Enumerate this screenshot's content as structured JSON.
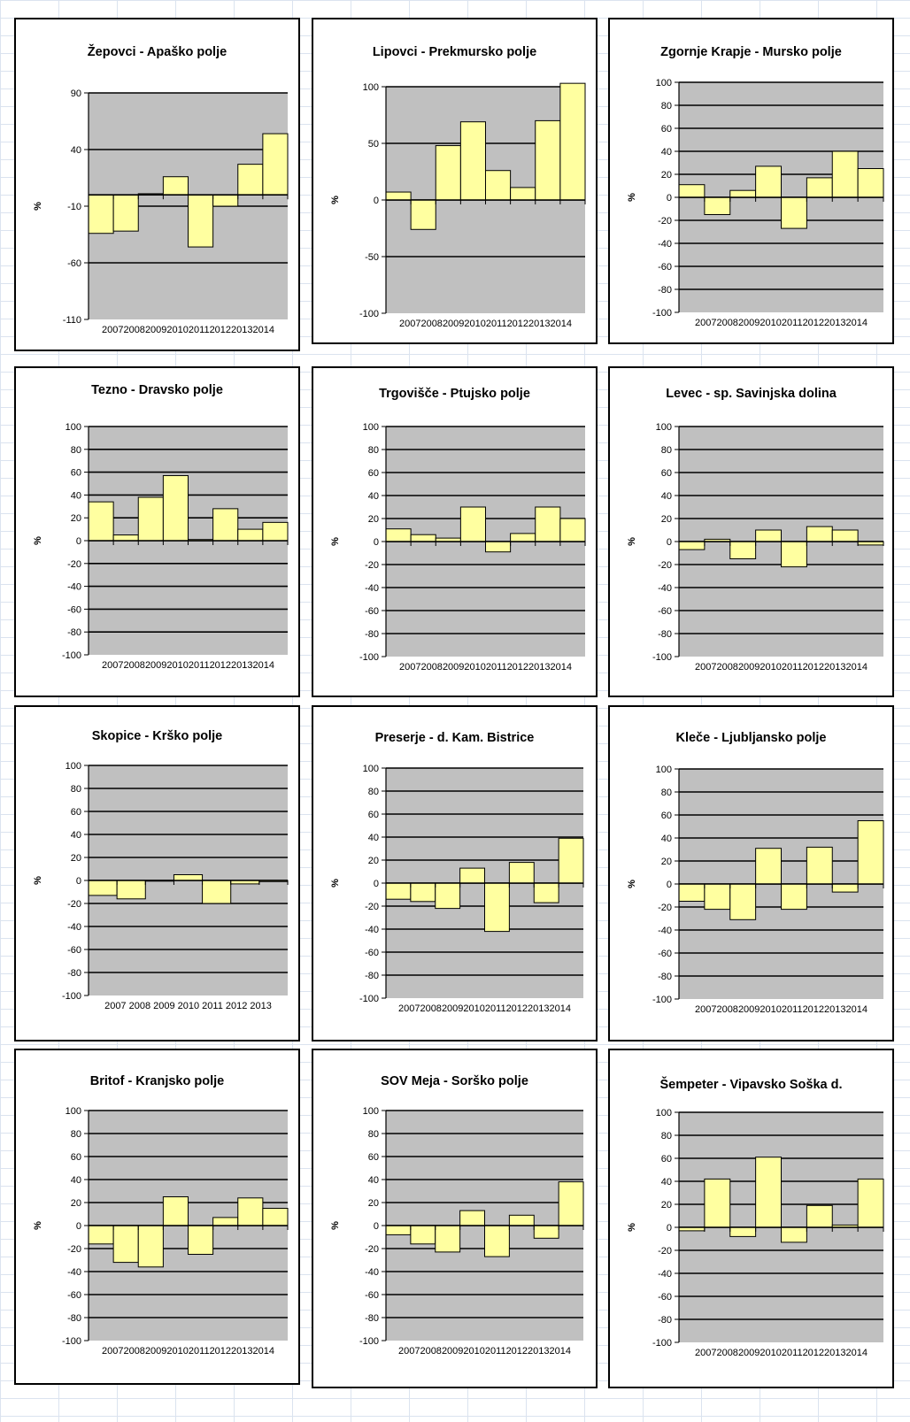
{
  "colors": {
    "plot_bg": "#c0c0c0",
    "bar_fill": "#ffffa0",
    "border": "#000000"
  },
  "chart_data": [
    {
      "type": "bar",
      "title": "Žepovci - Apaško  polje",
      "ylabel": "%",
      "ylim": [
        -110,
        90
      ],
      "yticks": [
        90,
        40,
        -10,
        -60,
        -110
      ],
      "categories": [
        "2007",
        "2008",
        "2009",
        "2010",
        "2011",
        "2012",
        "2013",
        "2014"
      ],
      "values": [
        -34,
        -32,
        1,
        16,
        -46,
        -10,
        27,
        54
      ],
      "grid": true,
      "category_label_gap": 0
    },
    {
      "type": "bar",
      "title": "Lipovci - Prekmursko  polje",
      "ylabel": "%",
      "ylim": [
        -100,
        100
      ],
      "yticks": [
        100,
        50,
        0,
        -50,
        -100
      ],
      "categories": [
        "2007",
        "2008",
        "2009",
        "2010",
        "2011",
        "2012",
        "2013",
        "2014"
      ],
      "values": [
        7,
        -26,
        48,
        69,
        26,
        11,
        70,
        103
      ],
      "grid": true,
      "category_label_gap": 0
    },
    {
      "type": "bar",
      "title": "Zgornje Krapje  - Mursko polje",
      "ylabel": "%",
      "ylim": [
        -100,
        100
      ],
      "yticks": [
        100,
        80,
        60,
        40,
        20,
        0,
        -20,
        -40,
        -60,
        -80,
        -100
      ],
      "categories": [
        "2007",
        "2008",
        "2009",
        "2010",
        "2011",
        "2012",
        "2013",
        "2014"
      ],
      "values": [
        11,
        -15,
        6,
        27,
        -27,
        17,
        40,
        25
      ],
      "grid": true,
      "category_label_gap": 0
    },
    {
      "type": "bar",
      "title": "Tezno - Dravsko  polje",
      "ylabel": "%",
      "ylim": [
        -100,
        100
      ],
      "yticks": [
        100,
        80,
        60,
        40,
        20,
        0,
        -20,
        -40,
        -60,
        -80,
        -100
      ],
      "categories": [
        "2007",
        "2008",
        "2009",
        "2010",
        "2011",
        "2012",
        "2013",
        "2014"
      ],
      "values": [
        34,
        5,
        38,
        57,
        1,
        28,
        10,
        16
      ],
      "grid": true,
      "category_label_gap": 0
    },
    {
      "type": "bar",
      "title": "Trgovišče - Ptujsko polje",
      "ylabel": "%",
      "ylim": [
        -100,
        100
      ],
      "yticks": [
        100,
        80,
        60,
        40,
        20,
        0,
        -20,
        -40,
        -60,
        -80,
        -100
      ],
      "categories": [
        "2007",
        "2008",
        "2009",
        "2010",
        "2011",
        "2012",
        "2013",
        "2014"
      ],
      "values": [
        11,
        6,
        3,
        30,
        -9,
        7,
        30,
        20
      ],
      "grid": true,
      "category_label_gap": 0
    },
    {
      "type": "bar",
      "title": "Levec - sp. Savinjska dolina",
      "ylabel": "%",
      "ylim": [
        -100,
        100
      ],
      "yticks": [
        100,
        80,
        60,
        40,
        20,
        0,
        -20,
        -40,
        -60,
        -80,
        -100
      ],
      "categories": [
        "2007",
        "2008",
        "2009",
        "2010",
        "2011",
        "2012",
        "2013",
        "2014"
      ],
      "values": [
        -7,
        2,
        -15,
        10,
        -22,
        13,
        10,
        -3
      ],
      "grid": true,
      "category_label_gap": 0
    },
    {
      "type": "bar",
      "title": "Skopice - Krško polje",
      "ylabel": "%",
      "ylim": [
        -100,
        100
      ],
      "yticks": [
        100,
        80,
        60,
        40,
        20,
        0,
        -20,
        -40,
        -60,
        -80,
        -100
      ],
      "categories": [
        "2007",
        "2008",
        "2009",
        "2010",
        "2011",
        "2012",
        "2013"
      ],
      "values": [
        -13,
        -16,
        0,
        5,
        -20,
        -3,
        -1
      ],
      "grid": true,
      "category_label_gap": 1
    },
    {
      "type": "bar",
      "title": "Preserje - d. Kam. Bistrice",
      "ylabel": "%",
      "ylim": [
        -100,
        100
      ],
      "yticks": [
        100,
        80,
        60,
        40,
        20,
        0,
        -20,
        -40,
        -60,
        -80,
        -100
      ],
      "categories": [
        "2007",
        "2008",
        "2009",
        "2010",
        "2011",
        "2012",
        "2013",
        "2014"
      ],
      "values": [
        -14,
        -16,
        -22,
        13,
        -42,
        18,
        -17,
        39
      ],
      "grid": true,
      "category_label_gap": 0
    },
    {
      "type": "bar",
      "title": "Kleče - Ljubljansko polje",
      "ylabel": "%",
      "ylim": [
        -100,
        100
      ],
      "yticks": [
        100,
        80,
        60,
        40,
        20,
        0,
        -20,
        -40,
        -60,
        -80,
        -100
      ],
      "categories": [
        "2007",
        "2008",
        "2009",
        "2010",
        "2011",
        "2012",
        "2013",
        "2014"
      ],
      "values": [
        -15,
        -22,
        -31,
        31,
        -22,
        32,
        -7,
        55
      ],
      "grid": true,
      "category_label_gap": 0
    },
    {
      "type": "bar",
      "title": "Britof - Kranjsko  polje",
      "ylabel": "%",
      "ylim": [
        -100,
        100
      ],
      "yticks": [
        100,
        80,
        60,
        40,
        20,
        0,
        -20,
        -40,
        -60,
        -80,
        -100
      ],
      "categories": [
        "2007",
        "2008",
        "2009",
        "2010",
        "2011",
        "2012",
        "2013",
        "2014"
      ],
      "values": [
        -16,
        -32,
        -36,
        25,
        -25,
        7,
        24,
        15
      ],
      "grid": true,
      "category_label_gap": 0
    },
    {
      "type": "bar",
      "title": "SOV Meja - Sorško polje",
      "ylabel": "%",
      "ylim": [
        -100,
        100
      ],
      "yticks": [
        100,
        80,
        60,
        40,
        20,
        0,
        -20,
        -40,
        -60,
        -80,
        -100
      ],
      "categories": [
        "2007",
        "2008",
        "2009",
        "2010",
        "2011",
        "2012",
        "2013",
        "2014"
      ],
      "values": [
        -8,
        -16,
        -23,
        13,
        -27,
        9,
        -11,
        38
      ],
      "grid": true,
      "category_label_gap": 0
    },
    {
      "type": "bar",
      "title": "Šempeter - Vipavsko Soška d.",
      "ylabel": "%",
      "ylim": [
        -100,
        100
      ],
      "yticks": [
        100,
        80,
        60,
        40,
        20,
        0,
        -20,
        -40,
        -60,
        -80,
        -100
      ],
      "categories": [
        "2007",
        "2008",
        "2009",
        "2010",
        "2011",
        "2012",
        "2013",
        "2014"
      ],
      "values": [
        -3,
        42,
        -8,
        61,
        -13,
        19,
        2,
        42
      ],
      "grid": true,
      "category_label_gap": 0
    }
  ]
}
